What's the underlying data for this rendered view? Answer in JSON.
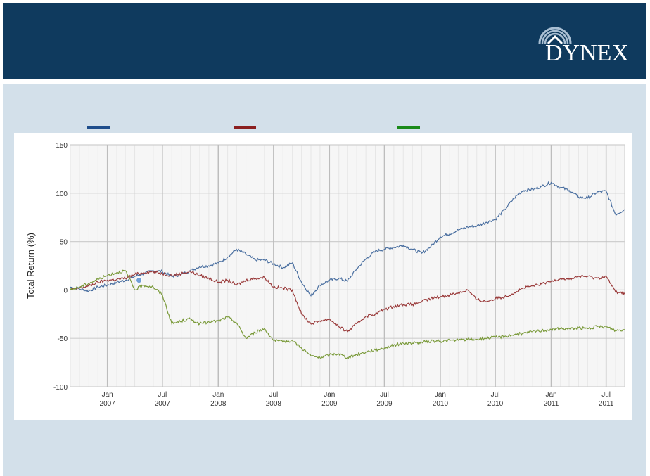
{
  "header": {
    "logo_text": "DYNEX",
    "colors": {
      "background": "#0f3a5e",
      "text": "#ffffff"
    },
    "logo_icon": "house-arc-icon"
  },
  "content": {
    "background": "#d3e0ea"
  },
  "legend": {
    "swatches": [
      {
        "color": "#1f4e8c"
      },
      {
        "color": "#8b2020"
      },
      {
        "color": "#1a8a1a"
      }
    ]
  },
  "chart_data": {
    "type": "line",
    "title": "",
    "xlabel": "",
    "ylabel": "Total Return (%)",
    "ylim": [
      -100,
      150
    ],
    "yticks": [
      -100,
      -50,
      0,
      50,
      100,
      150
    ],
    "x_range": [
      "2006-09-01",
      "2011-08-31"
    ],
    "xticks": [
      {
        "date": "2007-01-01",
        "line1": "Jan",
        "line2": "2007"
      },
      {
        "date": "2007-07-01",
        "line1": "Jul",
        "line2": "2007"
      },
      {
        "date": "2008-01-01",
        "line1": "Jan",
        "line2": "2008"
      },
      {
        "date": "2008-07-01",
        "line1": "Jul",
        "line2": "2008"
      },
      {
        "date": "2009-01-01",
        "line1": "Jan",
        "line2": "2009"
      },
      {
        "date": "2009-07-01",
        "line1": "Jul",
        "line2": "2009"
      },
      {
        "date": "2010-01-01",
        "line1": "Jan",
        "line2": "2010"
      },
      {
        "date": "2010-07-01",
        "line1": "Jul",
        "line2": "2010"
      },
      {
        "date": "2011-01-01",
        "line1": "Jan",
        "line2": "2011"
      },
      {
        "date": "2011-07-01",
        "line1": "Jul",
        "line2": "2011"
      }
    ],
    "grid": true,
    "series": [
      {
        "color": "#4a6fa0",
        "points": [
          [
            "2006-09-01",
            3
          ],
          [
            "2006-10-01",
            1
          ],
          [
            "2006-11-01",
            -1
          ],
          [
            "2006-12-01",
            3
          ],
          [
            "2007-01-01",
            5
          ],
          [
            "2007-02-01",
            8
          ],
          [
            "2007-03-01",
            10
          ],
          [
            "2007-04-01",
            14
          ],
          [
            "2007-05-01",
            17
          ],
          [
            "2007-06-01",
            20
          ],
          [
            "2007-07-01",
            19
          ],
          [
            "2007-08-01",
            14
          ],
          [
            "2007-09-01",
            16
          ],
          [
            "2007-10-01",
            20
          ],
          [
            "2007-11-01",
            24
          ],
          [
            "2007-12-01",
            25
          ],
          [
            "2008-01-01",
            28
          ],
          [
            "2008-02-01",
            34
          ],
          [
            "2008-03-01",
            42
          ],
          [
            "2008-04-01",
            37
          ],
          [
            "2008-05-01",
            31
          ],
          [
            "2008-06-01",
            31
          ],
          [
            "2008-07-01",
            27
          ],
          [
            "2008-08-01",
            23
          ],
          [
            "2008-09-01",
            28
          ],
          [
            "2008-10-01",
            8
          ],
          [
            "2008-11-01",
            -6
          ],
          [
            "2008-12-01",
            5
          ],
          [
            "2009-01-01",
            10
          ],
          [
            "2009-02-01",
            12
          ],
          [
            "2009-03-01",
            9
          ],
          [
            "2009-04-01",
            22
          ],
          [
            "2009-05-01",
            32
          ],
          [
            "2009-06-01",
            40
          ],
          [
            "2009-07-01",
            42
          ],
          [
            "2009-08-01",
            44
          ],
          [
            "2009-09-01",
            46
          ],
          [
            "2009-10-01",
            42
          ],
          [
            "2009-11-01",
            38
          ],
          [
            "2009-12-01",
            45
          ],
          [
            "2010-01-01",
            55
          ],
          [
            "2010-02-01",
            58
          ],
          [
            "2010-03-01",
            62
          ],
          [
            "2010-04-01",
            65
          ],
          [
            "2010-05-01",
            66
          ],
          [
            "2010-06-01",
            70
          ],
          [
            "2010-07-01",
            73
          ],
          [
            "2010-08-01",
            83
          ],
          [
            "2010-09-01",
            95
          ],
          [
            "2010-10-01",
            103
          ],
          [
            "2010-11-01",
            104
          ],
          [
            "2010-12-01",
            107
          ],
          [
            "2011-01-01",
            111
          ],
          [
            "2011-02-01",
            106
          ],
          [
            "2011-03-01",
            103
          ],
          [
            "2011-04-01",
            96
          ],
          [
            "2011-05-01",
            95
          ],
          [
            "2011-06-01",
            101
          ],
          [
            "2011-07-01",
            102
          ],
          [
            "2011-08-01",
            78
          ],
          [
            "2011-08-31",
            83
          ]
        ]
      },
      {
        "color": "#9a3b3b",
        "points": [
          [
            "2006-09-01",
            0
          ],
          [
            "2006-10-01",
            2
          ],
          [
            "2006-11-01",
            4
          ],
          [
            "2006-12-01",
            8
          ],
          [
            "2007-01-01",
            10
          ],
          [
            "2007-02-01",
            11
          ],
          [
            "2007-03-01",
            12
          ],
          [
            "2007-04-01",
            16
          ],
          [
            "2007-05-01",
            18
          ],
          [
            "2007-06-01",
            19
          ],
          [
            "2007-07-01",
            17
          ],
          [
            "2007-08-01",
            15
          ],
          [
            "2007-09-01",
            17
          ],
          [
            "2007-10-01",
            19
          ],
          [
            "2007-11-01",
            15
          ],
          [
            "2007-12-01",
            12
          ],
          [
            "2008-01-01",
            8
          ],
          [
            "2008-02-01",
            10
          ],
          [
            "2008-03-01",
            5
          ],
          [
            "2008-04-01",
            10
          ],
          [
            "2008-05-01",
            12
          ],
          [
            "2008-06-01",
            13
          ],
          [
            "2008-07-01",
            3
          ],
          [
            "2008-08-01",
            2
          ],
          [
            "2008-09-01",
            0
          ],
          [
            "2008-10-01",
            -25
          ],
          [
            "2008-11-01",
            -35
          ],
          [
            "2008-12-01",
            -32
          ],
          [
            "2009-01-01",
            -30
          ],
          [
            "2009-02-01",
            -38
          ],
          [
            "2009-03-01",
            -43
          ],
          [
            "2009-04-01",
            -35
          ],
          [
            "2009-05-01",
            -27
          ],
          [
            "2009-06-01",
            -25
          ],
          [
            "2009-07-01",
            -20
          ],
          [
            "2009-08-01",
            -17
          ],
          [
            "2009-09-01",
            -15
          ],
          [
            "2009-10-01",
            -15
          ],
          [
            "2009-11-01",
            -12
          ],
          [
            "2009-12-01",
            -9
          ],
          [
            "2010-01-01",
            -7
          ],
          [
            "2010-02-01",
            -5
          ],
          [
            "2010-03-01",
            -3
          ],
          [
            "2010-04-01",
            0
          ],
          [
            "2010-05-01",
            -10
          ],
          [
            "2010-06-01",
            -12
          ],
          [
            "2010-07-01",
            -9
          ],
          [
            "2010-08-01",
            -7
          ],
          [
            "2010-09-01",
            -3
          ],
          [
            "2010-10-01",
            2
          ],
          [
            "2010-11-01",
            4
          ],
          [
            "2010-12-01",
            6
          ],
          [
            "2011-01-01",
            9
          ],
          [
            "2011-02-01",
            12
          ],
          [
            "2011-03-01",
            11
          ],
          [
            "2011-04-01",
            14
          ],
          [
            "2011-05-01",
            14
          ],
          [
            "2011-06-01",
            12
          ],
          [
            "2011-07-01",
            14
          ],
          [
            "2011-08-01",
            -2
          ],
          [
            "2011-08-31",
            -3
          ]
        ]
      },
      {
        "color": "#7a9a3a",
        "points": [
          [
            "2006-09-01",
            0
          ],
          [
            "2006-10-01",
            3
          ],
          [
            "2006-11-01",
            7
          ],
          [
            "2006-12-01",
            11
          ],
          [
            "2007-01-01",
            15
          ],
          [
            "2007-02-01",
            18
          ],
          [
            "2007-03-01",
            20
          ],
          [
            "2007-04-01",
            0
          ],
          [
            "2007-05-01",
            5
          ],
          [
            "2007-06-01",
            3
          ],
          [
            "2007-07-01",
            -5
          ],
          [
            "2007-08-01",
            -35
          ],
          [
            "2007-09-01",
            -32
          ],
          [
            "2007-10-01",
            -30
          ],
          [
            "2007-11-01",
            -35
          ],
          [
            "2007-12-01",
            -33
          ],
          [
            "2008-01-01",
            -32
          ],
          [
            "2008-02-01",
            -28
          ],
          [
            "2008-03-01",
            -34
          ],
          [
            "2008-04-01",
            -50
          ],
          [
            "2008-05-01",
            -44
          ],
          [
            "2008-06-01",
            -40
          ],
          [
            "2008-07-01",
            -52
          ],
          [
            "2008-08-01",
            -54
          ],
          [
            "2008-09-01",
            -52
          ],
          [
            "2008-10-01",
            -60
          ],
          [
            "2008-11-01",
            -68
          ],
          [
            "2008-12-01",
            -70
          ],
          [
            "2009-01-01",
            -67
          ],
          [
            "2009-02-01",
            -66
          ],
          [
            "2009-03-01",
            -70
          ],
          [
            "2009-04-01",
            -67
          ],
          [
            "2009-05-01",
            -64
          ],
          [
            "2009-06-01",
            -62
          ],
          [
            "2009-07-01",
            -60
          ],
          [
            "2009-08-01",
            -57
          ],
          [
            "2009-09-01",
            -55
          ],
          [
            "2009-10-01",
            -55
          ],
          [
            "2009-11-01",
            -54
          ],
          [
            "2009-12-01",
            -53
          ],
          [
            "2010-01-01",
            -53
          ],
          [
            "2010-02-01",
            -52
          ],
          [
            "2010-03-01",
            -52
          ],
          [
            "2010-04-01",
            -51
          ],
          [
            "2010-05-01",
            -51
          ],
          [
            "2010-06-01",
            -50
          ],
          [
            "2010-07-01",
            -49
          ],
          [
            "2010-08-01",
            -48
          ],
          [
            "2010-09-01",
            -46
          ],
          [
            "2010-10-01",
            -45
          ],
          [
            "2010-11-01",
            -43
          ],
          [
            "2010-12-01",
            -42
          ],
          [
            "2011-01-01",
            -41
          ],
          [
            "2011-02-01",
            -40
          ],
          [
            "2011-03-01",
            -40
          ],
          [
            "2011-04-01",
            -39
          ],
          [
            "2011-05-01",
            -40
          ],
          [
            "2011-06-01",
            -38
          ],
          [
            "2011-07-01",
            -38
          ],
          [
            "2011-08-01",
            -42
          ],
          [
            "2011-08-31",
            -41
          ]
        ]
      }
    ],
    "marker": {
      "date": "2007-04-15",
      "value": 10,
      "color": "#6f9fd8"
    }
  }
}
